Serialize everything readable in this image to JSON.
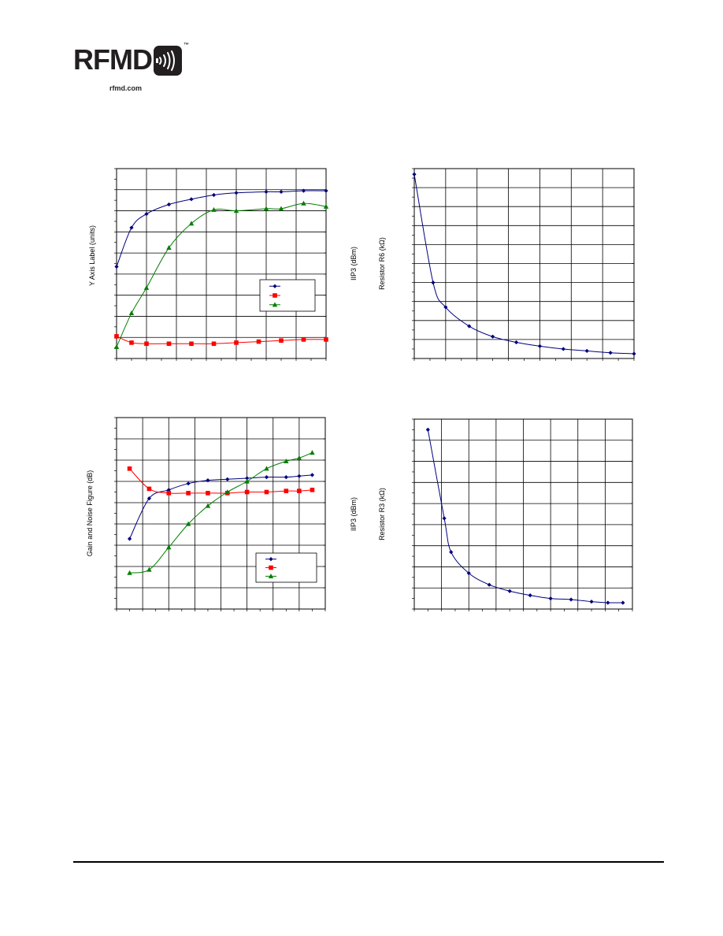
{
  "logo": {
    "text": "RFMD",
    "tm": "™",
    "url": "rfmd.com"
  },
  "chart_data": [
    {
      "type": "line",
      "title": "",
      "xlabel": "",
      "ylabel": "Y Axis Label (units)",
      "ylabel_right": "",
      "xlim": [
        0,
        14
      ],
      "ylim": [
        0,
        9
      ],
      "grid": true,
      "legend": "bottom-right",
      "series": [
        {
          "name": "",
          "color": "#00007f",
          "marker": "diamond",
          "x": [
            0,
            1,
            2,
            3.5,
            5,
            6.5,
            8,
            10,
            11,
            12.5,
            14
          ],
          "y": [
            4.35,
            6.2,
            6.85,
            7.3,
            7.55,
            7.75,
            7.85,
            7.9,
            7.9,
            7.95,
            7.95
          ]
        },
        {
          "name": "",
          "color": "#ff0000",
          "marker": "square",
          "x": [
            0,
            1,
            2,
            3.5,
            5,
            6.5,
            8,
            9.5,
            11,
            12.5,
            14
          ],
          "y": [
            1.05,
            0.75,
            0.7,
            0.7,
            0.7,
            0.7,
            0.75,
            0.8,
            0.85,
            0.9,
            0.9
          ]
        },
        {
          "name": "",
          "color": "#007f00",
          "marker": "triangle",
          "x": [
            0,
            1,
            2,
            3.5,
            5,
            6.5,
            8,
            10,
            11,
            12.5,
            14
          ],
          "y": [
            0.55,
            2.15,
            3.35,
            5.25,
            6.4,
            7.05,
            7.0,
            7.1,
            7.1,
            7.35,
            7.2
          ]
        }
      ]
    },
    {
      "type": "line",
      "title": "",
      "xlabel": "",
      "ylabel": "IIP3 (dBm)",
      "ylabel_right": "Resistor R6 (kΩ)",
      "xlim": [
        0,
        14
      ],
      "ylim": [
        0,
        10
      ],
      "grid": true,
      "legend": "",
      "series": [
        {
          "name": "",
          "color": "#00007f",
          "marker": "diamond",
          "x": [
            0,
            1.2,
            2,
            3.5,
            5,
            6.5,
            8,
            9.5,
            11,
            12.5,
            14
          ],
          "y": [
            9.7,
            4.0,
            2.7,
            1.7,
            1.15,
            0.85,
            0.65,
            0.5,
            0.4,
            0.3,
            0.25
          ]
        }
      ]
    },
    {
      "type": "line",
      "title": "",
      "xlabel": "",
      "ylabel": "Gain and Noise Figure (dB)",
      "ylabel_right": "",
      "xlim": [
        0,
        16
      ],
      "ylim": [
        0,
        9
      ],
      "grid": true,
      "legend": "bottom-right",
      "series": [
        {
          "name": "",
          "color": "#00007f",
          "marker": "diamond",
          "x": [
            1,
            2.5,
            4,
            5.5,
            7,
            8.5,
            10,
            11.5,
            13,
            14,
            15
          ],
          "y": [
            3.3,
            5.2,
            5.6,
            5.9,
            6.05,
            6.1,
            6.15,
            6.2,
            6.2,
            6.25,
            6.3
          ]
        },
        {
          "name": "",
          "color": "#ff0000",
          "marker": "square",
          "x": [
            1,
            2.5,
            4,
            5.5,
            7,
            8.5,
            10,
            11.5,
            13,
            14,
            15
          ],
          "y": [
            6.6,
            5.65,
            5.45,
            5.45,
            5.45,
            5.45,
            5.5,
            5.5,
            5.55,
            5.55,
            5.6
          ]
        },
        {
          "name": "",
          "color": "#007f00",
          "marker": "triangle",
          "x": [
            1,
            2.5,
            4,
            5.5,
            7,
            8.5,
            10,
            11.5,
            13,
            14,
            15
          ],
          "y": [
            1.7,
            1.85,
            2.9,
            4.0,
            4.85,
            5.5,
            6.0,
            6.6,
            6.95,
            7.1,
            7.35
          ]
        }
      ]
    },
    {
      "type": "line",
      "title": "",
      "xlabel": "",
      "ylabel": "IIP3 (dBm)",
      "ylabel_right": "Resistor R3 (kΩ)",
      "xlim": [
        0,
        16
      ],
      "ylim": [
        0,
        9
      ],
      "grid": true,
      "legend": "",
      "series": [
        {
          "name": "",
          "color": "#00007f",
          "marker": "diamond",
          "x": [
            1,
            2.2,
            2.7,
            4,
            5.5,
            7,
            8.5,
            10,
            11.5,
            13,
            14.2,
            15.3
          ],
          "y": [
            8.5,
            4.3,
            2.7,
            1.7,
            1.15,
            0.85,
            0.65,
            0.5,
            0.45,
            0.35,
            0.3,
            0.3
          ]
        }
      ]
    }
  ]
}
